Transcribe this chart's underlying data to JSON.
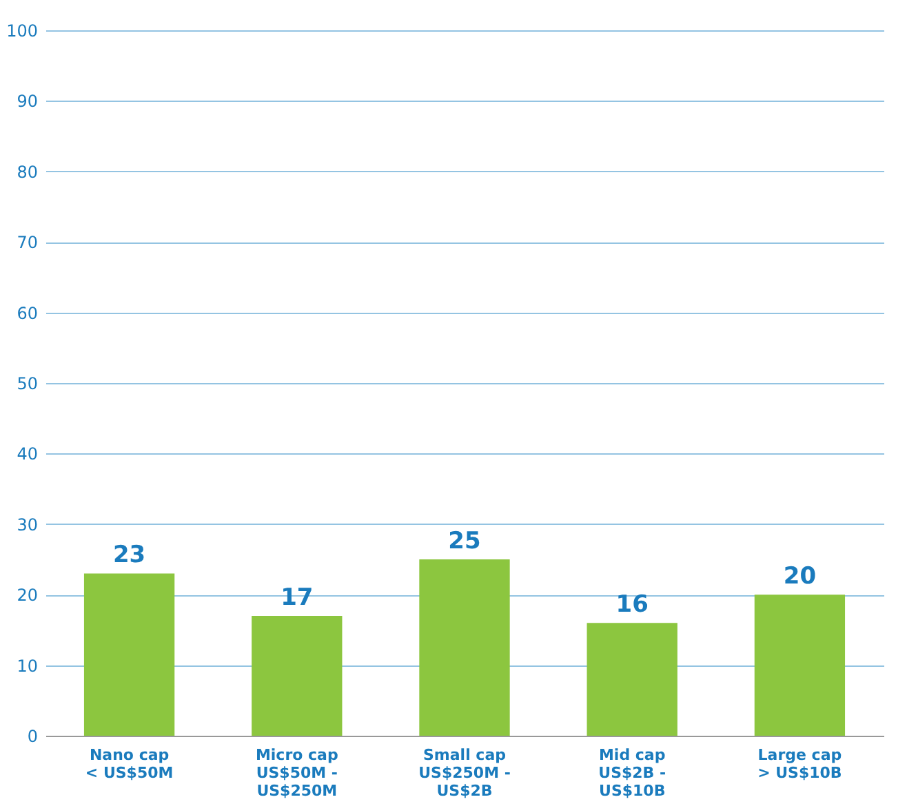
{
  "chart_data": {
    "type": "bar",
    "categories": [
      "Nano cap\n< US$50M",
      "Micro cap\nUS$50M -\nUS$250M",
      "Small cap\nUS$250M -\nUS$2B",
      "Mid cap\nUS$2B -\nUS$10B",
      "Large cap\n> US$10B"
    ],
    "values": [
      23,
      17,
      25,
      16,
      20
    ],
    "color": "#8cc63f",
    "ylim": [
      0,
      100
    ],
    "yticks": [
      0,
      10,
      20,
      30,
      40,
      50,
      60,
      70,
      80,
      90,
      100
    ],
    "grid": "y",
    "data_labels": true
  }
}
